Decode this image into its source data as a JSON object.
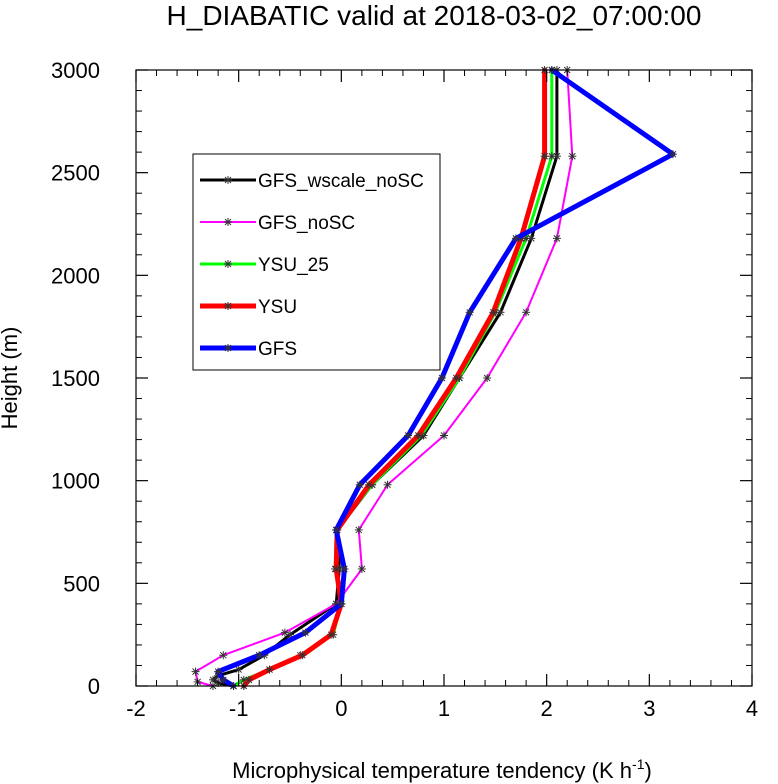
{
  "chart_data": {
    "type": "line",
    "title": "H_DIABATIC valid at 2018-03-02_07:00:00",
    "xlabel": "Microphysical temperature tendency (K h",
    "xlabel_sup": "-1",
    "xlabel_end": ")",
    "ylabel": "Height (m)",
    "xlim": [
      -2,
      4
    ],
    "ylim": [
      0,
      3000
    ],
    "x_ticks": [
      -2,
      -1,
      0,
      1,
      2,
      3,
      4
    ],
    "x_tick_labels": [
      "-2",
      "-1",
      "0",
      "1",
      "2",
      "3",
      "4"
    ],
    "y_ticks": [
      0,
      500,
      1000,
      1500,
      2000,
      2500,
      3000
    ],
    "y_tick_labels": [
      "0",
      "500",
      "1000",
      "1500",
      "2000",
      "2500",
      "3000"
    ],
    "grid": false,
    "legend_position": "upper-left-inside",
    "series": [
      {
        "name": "GFS_wscale_noSC",
        "color": "#000000",
        "line_width": 3,
        "points": [
          [
            -1.05,
            0
          ],
          [
            -1.2,
            15
          ],
          [
            -1.25,
            30
          ],
          [
            -1.2,
            50
          ],
          [
            -1.0,
            80
          ],
          [
            -0.75,
            150
          ],
          [
            -0.5,
            250
          ],
          [
            -0.05,
            400
          ],
          [
            -0.02,
            570
          ],
          [
            -0.04,
            760
          ],
          [
            0.3,
            980
          ],
          [
            0.8,
            1220
          ],
          [
            1.15,
            1500
          ],
          [
            1.55,
            1820
          ],
          [
            1.85,
            2180
          ],
          [
            2.1,
            2580
          ],
          [
            2.1,
            3000
          ]
        ]
      },
      {
        "name": "GFS_noSC",
        "color": "#ff00ff",
        "line_width": 2,
        "points": [
          [
            -1.25,
            0
          ],
          [
            -1.4,
            20
          ],
          [
            -1.42,
            70
          ],
          [
            -1.15,
            150
          ],
          [
            -0.55,
            260
          ],
          [
            -0.05,
            400
          ],
          [
            0.2,
            570
          ],
          [
            0.17,
            760
          ],
          [
            0.45,
            980
          ],
          [
            1.0,
            1220
          ],
          [
            1.42,
            1500
          ],
          [
            1.8,
            1820
          ],
          [
            2.1,
            2180
          ],
          [
            2.25,
            2580
          ],
          [
            2.2,
            3000
          ]
        ]
      },
      {
        "name": "YSU_25",
        "color": "#00ff00",
        "line_width": 3,
        "points": [
          [
            -1.05,
            0
          ],
          [
            -0.95,
            30
          ],
          [
            -0.7,
            80
          ],
          [
            -0.4,
            150
          ],
          [
            -0.08,
            250
          ],
          [
            0.0,
            400
          ],
          [
            -0.06,
            570
          ],
          [
            -0.05,
            760
          ],
          [
            0.3,
            980
          ],
          [
            0.78,
            1220
          ],
          [
            1.15,
            1500
          ],
          [
            1.5,
            1820
          ],
          [
            1.8,
            2180
          ],
          [
            2.05,
            2580
          ],
          [
            2.05,
            3000
          ]
        ]
      },
      {
        "name": "YSU",
        "color": "#ff0000",
        "line_width": 5,
        "points": [
          [
            -0.95,
            0
          ],
          [
            -0.9,
            30
          ],
          [
            -0.7,
            80
          ],
          [
            -0.38,
            150
          ],
          [
            -0.1,
            250
          ],
          [
            0.0,
            400
          ],
          [
            -0.05,
            570
          ],
          [
            -0.04,
            760
          ],
          [
            0.27,
            980
          ],
          [
            0.75,
            1220
          ],
          [
            1.12,
            1500
          ],
          [
            1.48,
            1820
          ],
          [
            1.75,
            2180
          ],
          [
            1.98,
            2580
          ],
          [
            1.98,
            3000
          ]
        ]
      },
      {
        "name": "GFS",
        "color": "#0000ff",
        "line_width": 5,
        "points": [
          [
            -1.05,
            0
          ],
          [
            -1.15,
            30
          ],
          [
            -1.2,
            70
          ],
          [
            -0.8,
            150
          ],
          [
            -0.35,
            260
          ],
          [
            0.0,
            400
          ],
          [
            0.03,
            570
          ],
          [
            -0.05,
            760
          ],
          [
            0.18,
            980
          ],
          [
            0.65,
            1220
          ],
          [
            0.98,
            1500
          ],
          [
            1.25,
            1820
          ],
          [
            1.7,
            2180
          ],
          [
            3.23,
            2590
          ],
          [
            2.05,
            3000
          ]
        ]
      }
    ]
  }
}
